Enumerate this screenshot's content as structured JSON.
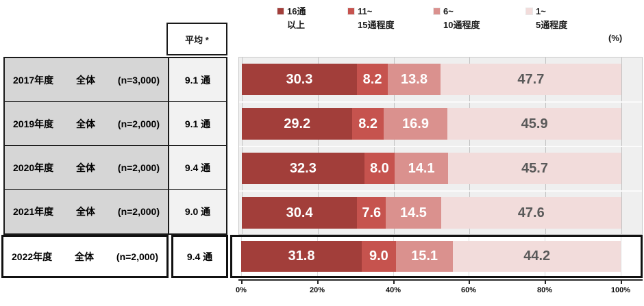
{
  "legend": {
    "items": [
      {
        "line1": "16通",
        "line2": "以上",
        "color": "#a23e3a"
      },
      {
        "line1": "11~",
        "line2": "15通程度",
        "color": "#c6534e"
      },
      {
        "line1": "6~",
        "line2": "10通程度",
        "color": "#da918e"
      },
      {
        "line1": "1~",
        "line2": "5通程度",
        "color": "#f2dcdb"
      }
    ],
    "unit_label": "(%)"
  },
  "table": {
    "avg_header": "平均 *",
    "rows": [
      {
        "year": "2017年度",
        "group": "全体",
        "n": "(n=3,000)",
        "avg": "9.1 通"
      },
      {
        "year": "2019年度",
        "group": "全体",
        "n": "(n=2,000)",
        "avg": "9.1 通"
      },
      {
        "year": "2020年度",
        "group": "全体",
        "n": "(n=2,000)",
        "avg": "9.4 通"
      },
      {
        "year": "2021年度",
        "group": "全体",
        "n": "(n=2,000)",
        "avg": "9.0 通"
      }
    ],
    "highlight_row": {
      "year": "2022年度",
      "group": "全体",
      "n": "(n=2,000)",
      "avg": "9.4 通"
    }
  },
  "axis": {
    "ticks": [
      "0%",
      "20%",
      "40%",
      "60%",
      "80%",
      "100%"
    ]
  },
  "colors": {
    "muted_label": "#595959",
    "plot_background": "#efefef",
    "label_cell_background": "#d6d6d6",
    "avg_cell_background": "#f2f2f2"
  },
  "chart_data": {
    "type": "bar",
    "stacked": true,
    "orientation": "horizontal",
    "unit": "%",
    "xlim": [
      0,
      100
    ],
    "x_ticks": [
      "0%",
      "20%",
      "40%",
      "60%",
      "80%",
      "100%"
    ],
    "grid": true,
    "legend_position": "top",
    "categories": [
      "2017年度 全体 (n=3,000)",
      "2019年度 全体 (n=2,000)",
      "2020年度 全体 (n=2,000)",
      "2021年度 全体 (n=2,000)",
      "2022年度 全体 (n=2,000)"
    ],
    "averages": [
      "9.1 通",
      "9.1 通",
      "9.4 通",
      "9.0 通",
      "9.4 通"
    ],
    "average_header": "平均 *",
    "series": [
      {
        "name": "16通以上",
        "color": "#a23e3a",
        "values": [
          30.3,
          29.2,
          32.3,
          30.4,
          31.8
        ]
      },
      {
        "name": "11~15通程度",
        "color": "#c6534e",
        "values": [
          8.2,
          8.2,
          8.0,
          7.6,
          9.0
        ]
      },
      {
        "name": "6~10通程度",
        "color": "#da918e",
        "values": [
          13.8,
          16.9,
          14.1,
          14.5,
          15.1
        ]
      },
      {
        "name": "1~5通程度",
        "color": "#f2dcdb",
        "values": [
          47.7,
          45.9,
          45.7,
          47.6,
          44.2
        ]
      }
    ],
    "highlighted_category_index": 4
  }
}
